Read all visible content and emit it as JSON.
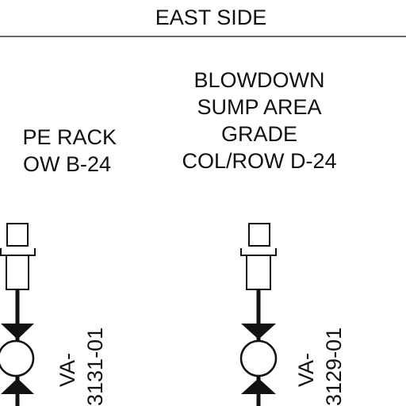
{
  "header": {
    "title": "EAST SIDE"
  },
  "left_location": {
    "line1": "PE RACK",
    "line2": "OW B-24"
  },
  "right_location": {
    "line1": "BLOWDOWN",
    "line2": "SUMP AREA",
    "line3": "GRADE",
    "line4": "COL/ROW D-24"
  },
  "valves": {
    "left_tag": "VA-",
    "left_number": "3131-01",
    "right_tag": "VA-",
    "right_number": "3129-01"
  },
  "colors": {
    "ink": "#111111",
    "background": "#ffffff"
  }
}
